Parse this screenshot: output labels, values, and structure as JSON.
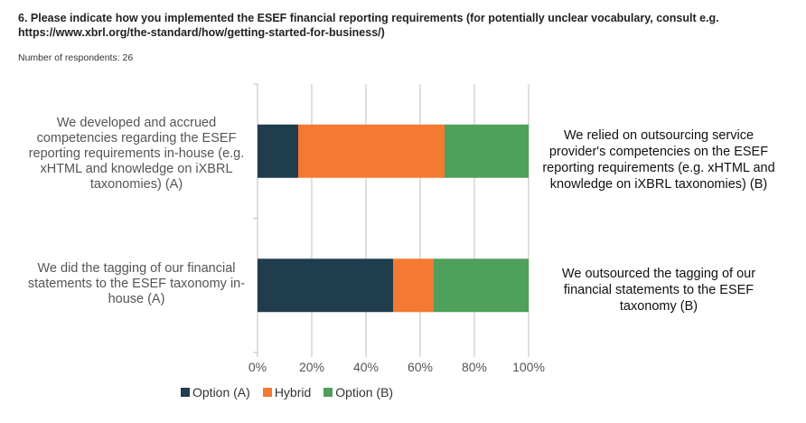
{
  "header": {
    "question": "6. Please indicate how you implemented the ESEF financial reporting requirements (for potentially unclear vocabulary, consult e.g. https://www.xbrl.org/the-standard/how/getting-started-for-business/)",
    "respondents": "Number of respondents: 26"
  },
  "chart_data": {
    "type": "bar",
    "orientation": "horizontal",
    "stacked": true,
    "categories": [
      "We developed and accrued competencies regarding the ESEF reporting requirements in-house (e.g. xHTML and knowledge on iXBRL taxonomies) (A)",
      "We did the tagging of our financial statements to the ESEF taxonomy in-house (A)"
    ],
    "right_labels": [
      "We relied on outsourcing service provider's competencies on the ESEF reporting requirements (e.g. xHTML and knowledge on iXBRL taxonomies) (B)",
      "We outsourced the tagging of our financial statements to the ESEF taxonomy (B)"
    ],
    "series": [
      {
        "name": "Option (A)",
        "values": [
          15,
          50
        ],
        "color": "#1f3d4d"
      },
      {
        "name": "Hybrid",
        "values": [
          54,
          15
        ],
        "color": "#f47932"
      },
      {
        "name": "Option (B)",
        "values": [
          31,
          35
        ],
        "color": "#4fa05a"
      }
    ],
    "x_ticks": [
      "0%",
      "20%",
      "40%",
      "60%",
      "80%",
      "100%"
    ],
    "xlim": [
      0,
      100
    ],
    "grid": true,
    "legend_placement": "bottom"
  }
}
